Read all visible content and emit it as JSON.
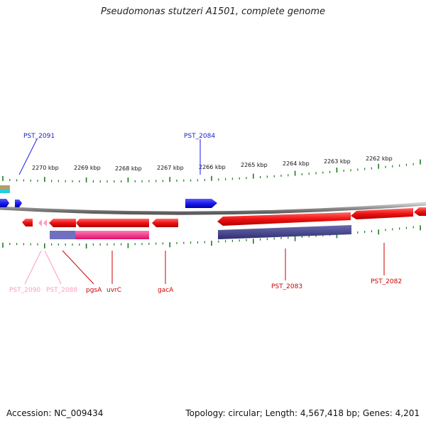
{
  "title": "Pseudomonas stutzeri A1501, complete genome",
  "footer": {
    "accession": "Accession: NC_009434",
    "summary": "Topology: circular; Length: 4,567,418 bp; Genes: 4,201"
  },
  "colors": {
    "backbone": "#8c8c8c",
    "tick": "#1e7a1e",
    "forward_gene": "#1a1aee",
    "reverse_gene": "#ee1111",
    "pink_gene": "#ff9ac0",
    "pgsA_fill": "#ff2a80",
    "track_purple": "#4a4a90",
    "track_slate": "#7070c0"
  },
  "axis": {
    "unit_ticks_top": [
      "2270 kbp",
      "2269 kbp",
      "2268 kbp",
      "2267 kbp",
      "2266 kbp",
      "2265 kbp",
      "2264 kbp",
      "2263 kbp",
      "2262 kbp"
    ]
  },
  "labels": {
    "PST_2091": "PST_2091",
    "PST_2084": "PST_2084",
    "PST_2090": "PST_2090",
    "PST_2088": "PST_2088",
    "pgsA": "pgsA",
    "uvrC": "uvrC",
    "gacA": "gacA",
    "PST_2083": "PST_2083",
    "PST_2082": "PST_2082"
  }
}
